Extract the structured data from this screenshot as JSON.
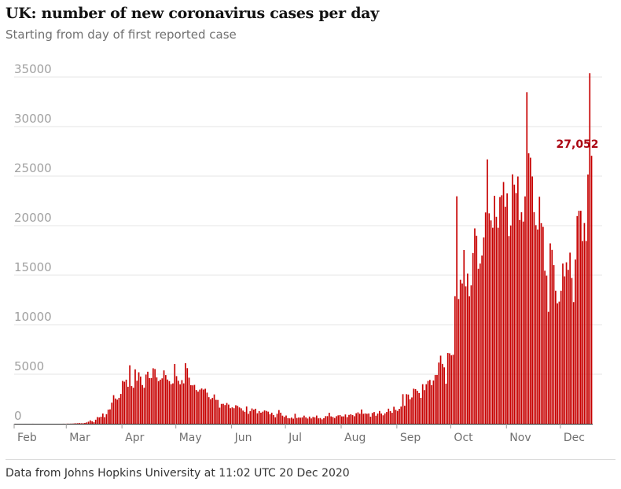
{
  "header": {
    "title": "UK: number of new coronavirus cases per day",
    "subtitle": "Starting from day of first reported case"
  },
  "footer": {
    "source": "Data from Johns Hopkins University at 11:02 UTC 20 Dec 2020"
  },
  "colors": {
    "bar": "#c70000",
    "label": "#ab0613",
    "grid": "#e6e6e6",
    "tick": "#a0a0a0"
  },
  "chart_data": {
    "type": "bar",
    "title": "UK: number of new coronavirus cases per day",
    "subtitle": "Starting from day of first reported case",
    "xlabel": "",
    "ylabel": "",
    "ylim": [
      0,
      35000
    ],
    "y_ticks": [
      "0",
      "5000",
      "10000",
      "15000",
      "20000",
      "25000",
      "30000",
      "35000"
    ],
    "x_ticks": [
      "Feb",
      "Mar",
      "Apr",
      "May",
      "Jun",
      "Jul",
      "Aug",
      "Sep",
      "Oct",
      "Nov",
      "Dec"
    ],
    "grid": true,
    "annotation": {
      "text": "27,052",
      "value": 27052
    },
    "series": [
      {
        "monthly_daily_values": [
          {
            "month": "Feb",
            "values": [
              2,
              0,
              0,
              0,
              0,
              0,
              1,
              0,
              0,
              0,
              3,
              0,
              0,
              0,
              0,
              0,
              0,
              0,
              0,
              0,
              0,
              0,
              0,
              0,
              0,
              0,
              0,
              4,
              2
            ]
          },
          {
            "month": "Mar",
            "values": [
              12,
              9,
              12,
              17,
              30,
              47,
              48,
              67,
              49,
              52,
              83,
              134,
              208,
              342,
              251,
              152,
              407,
              676,
              643,
              714,
              1035,
              665,
              967,
              1427,
              1452,
              2129,
              2885,
              2546,
              2433,
              2619,
              3009
            ]
          },
          {
            "month": "Apr",
            "values": [
              4324,
              4244,
              4450,
              3735,
              5903,
              3802,
              3634,
              5491,
              4344,
              5195,
              4764,
              3906,
              3634,
              4963,
              5252,
              4603,
              4617,
              5599,
              5525,
              4676,
              4301,
              4451,
              4583,
              5386,
              4913,
              4463,
              4309,
              3996,
              4076,
              6032
            ]
          },
          {
            "month": "May",
            "values": [
              4806,
              4339,
              3985,
              4406,
              4076,
              6111,
              5614,
              4649,
              3896,
              3877,
              3923,
              3403,
              3242,
              3446,
              3560,
              3450,
              3534,
              3142,
              2684,
              2472,
              2615,
              2959,
              2412,
              2405,
              1625,
              2004,
              2013,
              1887,
              2095,
              1936,
              1570
            ]
          },
          {
            "month": "Jun",
            "values": [
              1653,
              1570,
              1871,
              1805,
              1650,
              1557,
              1326,
              1205,
              1741,
              1003,
              1266,
              1541,
              1425,
              1514,
              1056,
              1279,
              1115,
              1218,
              1346,
              1295,
              1221,
              958,
              1118,
              874,
              653,
              1006,
              1380,
              1118,
              815,
              689
            ]
          },
          {
            "month": "Jul",
            "values": [
              829,
              576,
              544,
              624,
              516,
              1009,
              581,
              630,
              612,
              643,
              820,
              650,
              529,
              726,
              538,
              687,
              648,
              827,
              546,
              580,
              445,
              560,
              769,
              767,
              1110,
              745,
              685,
              581,
              763,
              846,
              880
            ]
          },
          {
            "month": "Aug",
            "values": [
              743,
              744,
              938,
              670,
              892,
              950,
              871,
              758,
              1062,
              1148,
              1009,
              1441,
              1005,
              1041,
              1007,
              1040,
              713,
              1089,
              1182,
              812,
              1033,
              1288,
              1035,
              853,
              1048,
              1184,
              1522,
              1276,
              1108,
              1715,
              1406
            ]
          },
          {
            "month": "Sep",
            "values": [
              1295,
              1508,
              1735,
              2988,
              1813,
              2988,
              2948,
              2460,
              2659,
              3539,
              3497,
              3330,
              3105,
              2621,
              3991,
              3395,
              3991,
              4322,
              4422,
              3899,
              4368,
              4926,
              4926,
              6178,
              6874,
              6042,
              5693,
              4044,
              7143,
              7108
            ]
          },
          {
            "month": "Oct",
            "values": [
              6914,
              6968,
              12872,
              22961,
              12594,
              14542,
              14162,
              17540,
              13864,
              15166,
              12872,
              13972,
              17234,
              19724,
              18980,
              15650,
              16171,
              16982,
              18804,
              21331,
              26688,
              21242,
              20530,
              19790,
              23012,
              20890,
              19790,
              22885,
              23065,
              24405,
              21915
            ]
          },
          {
            "month": "Nov",
            "values": [
              23254,
              18950,
              20018,
              25177,
              24141,
              23287,
              24957,
              20572,
              21350,
              20412,
              22950,
              33470,
              27301,
              26860,
              24962,
              21363,
              20051,
              19609,
              22915,
              20252,
              19875,
              15450,
              14950,
              11299,
              18213,
              17555,
              16022,
              13430,
              12155,
              12330
            ]
          },
          {
            "month": "Dec",
            "values": [
              13430,
              16170,
              14879,
              16298,
              15539,
              17272,
              14718,
              12282,
              16578,
              20964,
              21502,
              21502,
              18447,
              20263,
              18450,
              25161,
              35383,
              27052
            ]
          }
        ]
      }
    ]
  }
}
